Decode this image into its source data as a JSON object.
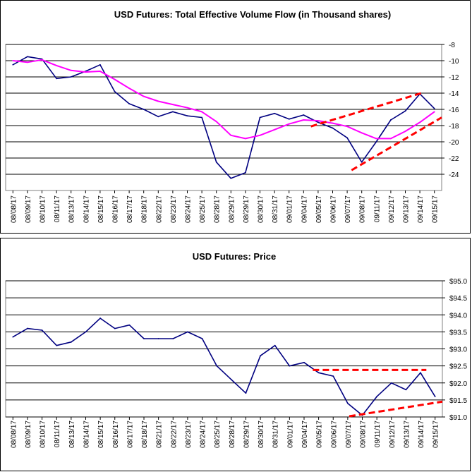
{
  "chart_data": [
    {
      "type": "line",
      "title": "USD Futures: Total Effective Volume Flow (in Thousand shares)",
      "xlabel": "",
      "ylabel": "",
      "ylim": [
        -26,
        -8
      ],
      "yticks": [
        -8,
        -10,
        -12,
        -14,
        -16,
        -18,
        -20,
        -22,
        -24
      ],
      "ytick_labels": [
        "-8",
        "-10",
        "-12",
        "-14",
        "-16",
        "-18",
        "-20",
        "-22",
        "-24"
      ],
      "grid": true,
      "categories": [
        "08/08/17",
        "08/09/17",
        "08/10/17",
        "08/11/17",
        "08/13/17",
        "08/14/17",
        "08/15/17",
        "08/16/17",
        "08/17/17",
        "08/18/17",
        "08/22/17",
        "08/23/17",
        "08/24/17",
        "08/25/17",
        "08/28/17",
        "08/29/17",
        "08/29/17",
        "08/30/17",
        "08/31/17",
        "09/01/17",
        "09/04/17",
        "09/05/17",
        "09/06/17",
        "09/07/17",
        "09/08/17",
        "09/11/17",
        "09/12/17",
        "09/13/17",
        "09/14/17",
        "09/15/17"
      ],
      "series": [
        {
          "color": "#000080",
          "values": [
            -10.5,
            -9.5,
            -9.8,
            -12.2,
            -12.0,
            -11.3,
            -10.5,
            -13.8,
            -15.3,
            -16.0,
            -16.9,
            -16.3,
            -16.8,
            -17.0,
            -22.5,
            -24.5,
            -23.8,
            -17.0,
            -16.5,
            -17.2,
            -16.7,
            -17.6,
            -18.3,
            -19.5,
            -22.5,
            -20.0,
            -17.3,
            -16.2,
            -14.1,
            -15.9
          ]
        },
        {
          "color": "#ff00ff",
          "values": [
            -10.0,
            -10.2,
            -9.9,
            -10.6,
            -11.2,
            -11.4,
            -11.3,
            -12.3,
            -13.4,
            -14.4,
            -15.0,
            -15.4,
            -15.8,
            -16.3,
            -17.5,
            -19.2,
            -19.6,
            -19.2,
            -18.5,
            -17.8,
            -17.3,
            -17.4,
            -17.7,
            -18.1,
            -18.9,
            -19.6,
            -19.6,
            -18.7,
            -17.6,
            -16.3
          ]
        }
      ],
      "trendlines": [
        {
          "color": "#ff0000",
          "style": "dashed",
          "x": [
            21.0,
            28.6
          ],
          "y": [
            -18.1,
            -14.0
          ]
        },
        {
          "color": "#ff0000",
          "style": "dashed",
          "x": [
            23.8,
            30.0
          ],
          "y": [
            -23.5,
            -17.0
          ]
        }
      ]
    },
    {
      "type": "line",
      "title": "USD Futures: Price",
      "xlabel": "",
      "ylabel": "",
      "ylim": [
        91.0,
        95.0
      ],
      "yticks": [
        95.0,
        94.5,
        94.0,
        93.5,
        93.0,
        92.5,
        92.0,
        91.5,
        91.0
      ],
      "ytick_labels": [
        "$95.0",
        "$94.5",
        "$94.0",
        "$93.5",
        "$93.0",
        "$92.5",
        "$92.0",
        "$91.5",
        "$91.0"
      ],
      "grid": true,
      "categories": [
        "08/08/17",
        "08/09/17",
        "08/10/17",
        "08/11/17",
        "08/13/17",
        "08/14/17",
        "08/15/17",
        "08/16/17",
        "08/17/17",
        "08/18/17",
        "08/21/17",
        "08/22/17",
        "08/23/17",
        "08/24/17",
        "08/25/17",
        "08/28/17",
        "08/29/17",
        "08/30/17",
        "08/31/17",
        "09/01/17",
        "09/04/17",
        "09/05/17",
        "09/06/17",
        "09/07/17",
        "09/08/17",
        "09/11/17",
        "09/12/17",
        "09/13/17",
        "09/14/17",
        "09/15/17"
      ],
      "series": [
        {
          "color": "#000080",
          "values": [
            93.35,
            93.6,
            93.55,
            93.1,
            93.2,
            93.5,
            93.9,
            93.6,
            93.7,
            93.3,
            93.3,
            93.3,
            93.5,
            93.3,
            92.5,
            92.1,
            91.7,
            92.8,
            93.1,
            92.5,
            92.6,
            92.3,
            92.2,
            91.4,
            91.05,
            91.6,
            92.0,
            91.8,
            92.3,
            91.6
          ]
        }
      ],
      "trendlines": [
        {
          "color": "#ff0000",
          "style": "dashed",
          "x": [
            21.1,
            28.9
          ],
          "y": [
            92.38,
            92.38
          ]
        },
        {
          "color": "#ff0000",
          "style": "dashed",
          "x": [
            23.6,
            30.0
          ],
          "y": [
            91.02,
            91.45
          ]
        }
      ]
    }
  ]
}
